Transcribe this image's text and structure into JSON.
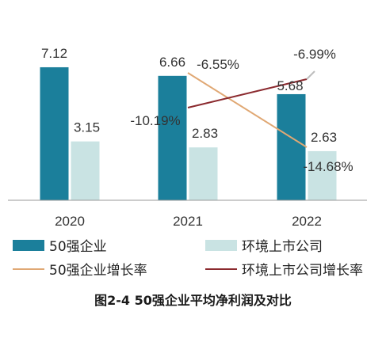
{
  "colors": {
    "bar1": "#1b7f9b",
    "bar2": "#c9e3e3",
    "line1": "#e0a874",
    "line2": "#8b2a2f",
    "axis": "#999999"
  },
  "caption": "图2-4 50强企业平均净利润及对比",
  "legend": [
    {
      "label": "50强企业",
      "kind": "bar",
      "color": "#1b7f9b"
    },
    {
      "label": "环境上市公司",
      "kind": "bar",
      "color": "#c9e3e3"
    },
    {
      "label": "50强企业增长率",
      "kind": "line",
      "color": "#e0a874"
    },
    {
      "label": "环境上市公司增长率",
      "kind": "line",
      "color": "#8b2a2f"
    }
  ],
  "chart_data": {
    "type": "bar",
    "categories": [
      "2020",
      "2021",
      "2022"
    ],
    "series": [
      {
        "name": "50强企业",
        "values": [
          7.12,
          6.66,
          5.68
        ],
        "labels": [
          "7.12",
          "6.66",
          "5.68"
        ]
      },
      {
        "name": "环境上市公司",
        "values": [
          3.15,
          2.83,
          2.63
        ],
        "labels": [
          "3.15",
          "2.83",
          "2.63"
        ]
      }
    ],
    "line_series": [
      {
        "name": "50强企业增长率",
        "categories": [
          "2021",
          "2022"
        ],
        "values": [
          -6.55,
          -14.68
        ],
        "labels": [
          "-6.55%",
          "-14.68%"
        ]
      },
      {
        "name": "环境上市公司增长率",
        "categories": [
          "2021",
          "2022"
        ],
        "values": [
          -10.19,
          -6.99
        ],
        "labels": [
          "-10.19%",
          "-6.99%"
        ]
      }
    ],
    "title": "",
    "xlabel": "",
    "ylabel": "",
    "ylim": [
      0,
      8
    ],
    "grid": false,
    "legend_position": "bottom"
  }
}
